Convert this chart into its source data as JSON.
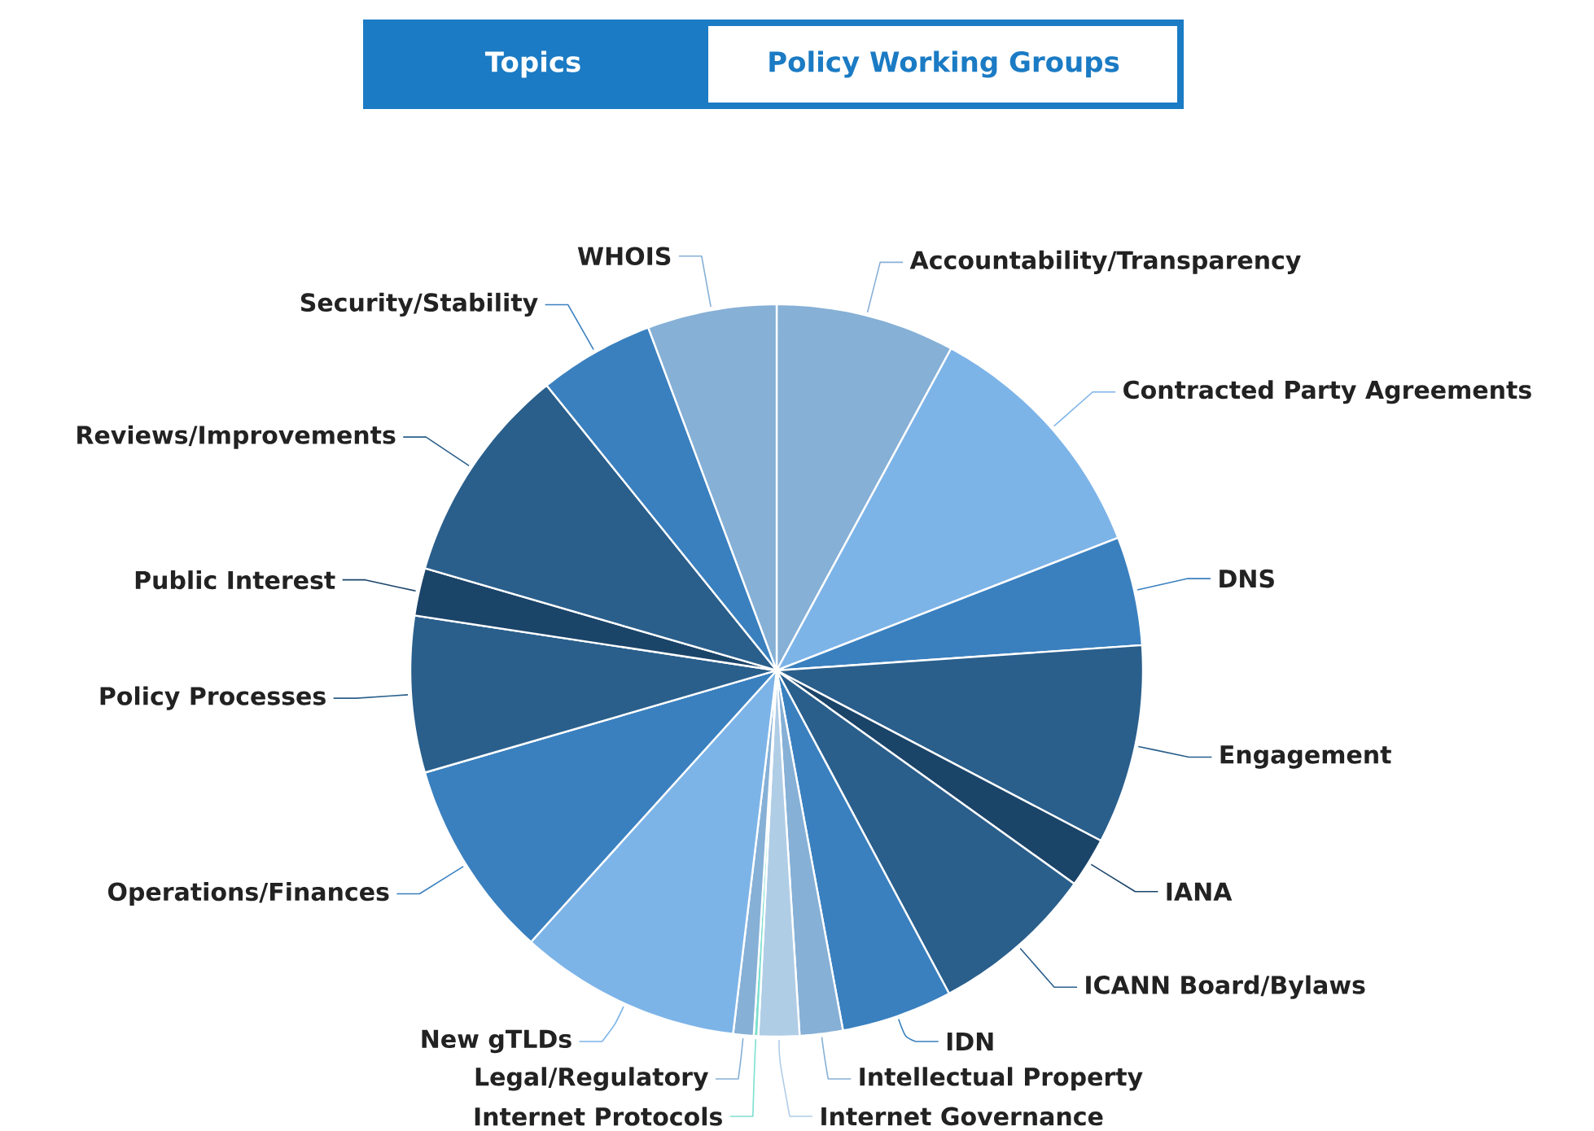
{
  "chart_data": {
    "type": "pie",
    "annotations": [
      "Topics",
      "Policy Working Groups"
    ],
    "categories": [
      "Accountability/Transparency",
      "Contracted Party Agreements",
      "DNS",
      "Engagement",
      "IANA",
      "ICANN Board/Bylaws",
      "IDN",
      "Intellectual Property",
      "Internet Governance",
      "Internet Protocols",
      "Legal/Regulatory",
      "New gTLDs",
      "Operations/Finances",
      "Policy Processes",
      "Public Interest",
      "Reviews/Improvements",
      "Security/Stability",
      "WHOIS"
    ],
    "values": [
      7.9,
      11.2,
      4.8,
      8.8,
      2.2,
      7.3,
      4.9,
      1.9,
      1.8,
      0.2,
      0.9,
      9.8,
      8.8,
      6.9,
      2.1,
      9.7,
      5.1,
      5.7
    ],
    "colors": [
      "#86b0d6",
      "#7db4e8",
      "#3a80bf",
      "#2a5f8c",
      "#1b4469",
      "#2a5f8c",
      "#3a80bf",
      "#86b0d6",
      "#b0cde6",
      "#7de0d0",
      "#86b0d6",
      "#7db4e8",
      "#3a80bf",
      "#2a5f8c",
      "#1b4469",
      "#2a5f8c",
      "#3a80bf",
      "#86b0d6"
    ]
  }
}
